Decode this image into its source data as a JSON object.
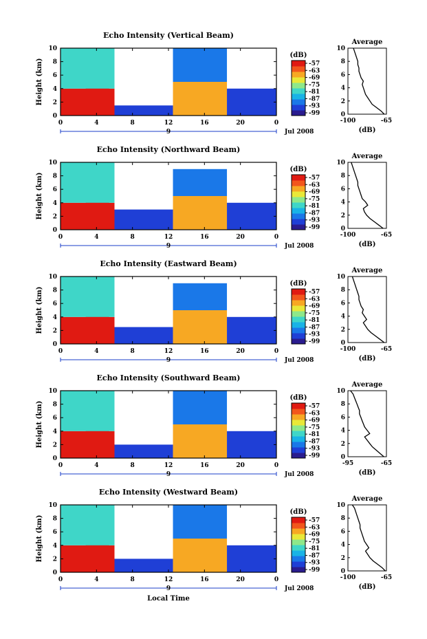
{
  "chart_data": [
    {
      "type": "heatmap",
      "title": "Echo Intensity (Vertical Beam)",
      "ylabel": "Height (km)",
      "x_ticks": [
        "0",
        "4",
        "8",
        "12",
        "16",
        "20",
        "0"
      ],
      "y_ticks": [
        "0",
        "2",
        "4",
        "6",
        "8",
        "10"
      ],
      "xlim": [
        0,
        24
      ],
      "ylim": [
        0,
        10
      ],
      "date_marker": "9",
      "date_label": "Jul 2008",
      "colorbar": {
        "unit": "(dB)",
        "labels": [
          "-57",
          "-63",
          "-69",
          "-75",
          "-81",
          "-87",
          "-93",
          "-99"
        ]
      },
      "average_profile": {
        "title": "Average",
        "xlabel": "(dB)",
        "x_ticks": [
          "-100",
          "-65"
        ],
        "xlim": [
          -100,
          -65
        ],
        "y_ticks": [
          "0",
          "2",
          "4",
          "6",
          "8",
          "10"
        ],
        "ylim": [
          0,
          10
        ],
        "x": [
          -67,
          -70,
          -74,
          -78,
          -80,
          -82,
          -84,
          -85,
          -86,
          -87,
          -86,
          -88,
          -89,
          -90,
          -90,
          -91,
          -91,
          -92,
          -93,
          -94,
          -95
        ],
        "y": [
          0,
          0.5,
          1,
          1.5,
          2,
          2.5,
          3,
          3.5,
          4,
          4.5,
          5,
          5.5,
          6,
          6.5,
          7,
          7.5,
          8,
          8.5,
          9,
          9.5,
          10
        ]
      },
      "cells": [
        {
          "x0": 0,
          "x1": 6,
          "y0": 0,
          "y1": 4,
          "value": -57
        },
        {
          "x0": 2.8,
          "x1": 5.4,
          "y0": 0,
          "y1": 4.6,
          "value": -57
        },
        {
          "x0": 0,
          "x1": 6,
          "y0": 4,
          "y1": 10,
          "value": -81
        },
        {
          "x0": 6,
          "x1": 12.5,
          "y0": 0,
          "y1": 1.5,
          "value": -93
        },
        {
          "x0": 12.5,
          "x1": 18.5,
          "y0": 0,
          "y1": 5,
          "value": -69
        },
        {
          "x0": 12.5,
          "x1": 18.5,
          "y0": 5,
          "y1": 10,
          "value": -87
        },
        {
          "x0": 18.5,
          "x1": 24,
          "y0": 0,
          "y1": 4,
          "value": -93
        }
      ]
    },
    {
      "type": "heatmap",
      "title": "Echo Intensity (Northward Beam)",
      "ylabel": "Height (km)",
      "x_ticks": [
        "0",
        "4",
        "8",
        "12",
        "16",
        "20",
        "0"
      ],
      "y_ticks": [
        "0",
        "2",
        "4",
        "6",
        "8",
        "10"
      ],
      "xlim": [
        0,
        24
      ],
      "ylim": [
        0,
        10
      ],
      "date_marker": "9",
      "date_label": "Jul 2008",
      "colorbar": {
        "unit": "(dB)",
        "labels": [
          "-57",
          "-63",
          "-69",
          "-75",
          "-81",
          "-87",
          "-93",
          "-99"
        ]
      },
      "average_profile": {
        "title": "Average",
        "xlabel": "(dB)",
        "x_ticks": [
          "-100",
          "-65"
        ],
        "xlim": [
          -100,
          -65
        ],
        "y_ticks": [
          "0",
          "2",
          "4",
          "6",
          "8",
          "10"
        ],
        "ylim": [
          0,
          10
        ],
        "x": [
          -68,
          -72,
          -76,
          -80,
          -83,
          -85,
          -86,
          -82,
          -84,
          -87,
          -88,
          -89,
          -90,
          -91,
          -91,
          -92,
          -93,
          -94,
          -95,
          -96,
          -97
        ],
        "y": [
          0,
          0.5,
          1,
          1.5,
          2,
          2.5,
          3,
          3.5,
          4,
          4.5,
          5,
          5.5,
          6,
          6.5,
          7,
          7.5,
          8,
          8.5,
          9,
          9.5,
          10
        ]
      },
      "cells": [
        {
          "x0": 0,
          "x1": 6,
          "y0": 0,
          "y1": 4,
          "value": -57
        },
        {
          "x0": 2.8,
          "x1": 5.4,
          "y0": 0,
          "y1": 4.6,
          "value": -57
        },
        {
          "x0": 0,
          "x1": 6,
          "y0": 4,
          "y1": 10,
          "value": -81
        },
        {
          "x0": 6,
          "x1": 12.5,
          "y0": 0,
          "y1": 3,
          "value": -93
        },
        {
          "x0": 12.5,
          "x1": 18.5,
          "y0": 0,
          "y1": 5,
          "value": -69
        },
        {
          "x0": 12.5,
          "x1": 18.5,
          "y0": 5,
          "y1": 9,
          "value": -87
        },
        {
          "x0": 18.5,
          "x1": 24,
          "y0": 0,
          "y1": 4,
          "value": -93
        }
      ]
    },
    {
      "type": "heatmap",
      "title": "Echo Intensity (Eastward Beam)",
      "ylabel": "Height (km)",
      "x_ticks": [
        "0",
        "4",
        "8",
        "12",
        "16",
        "20",
        "0"
      ],
      "y_ticks": [
        "0",
        "2",
        "4",
        "6",
        "8",
        "10"
      ],
      "xlim": [
        0,
        24
      ],
      "ylim": [
        0,
        10
      ],
      "date_marker": "9",
      "date_label": "Jul 2008",
      "colorbar": {
        "unit": "(dB)",
        "labels": [
          "-57",
          "-63",
          "-69",
          "-75",
          "-81",
          "-87",
          "-93",
          "-99"
        ]
      },
      "average_profile": {
        "title": "Average",
        "xlabel": "(dB)",
        "x_ticks": [
          "-100",
          "-65"
        ],
        "xlim": [
          -100,
          -65
        ],
        "y_ticks": [
          "0",
          "2",
          "4",
          "6",
          "8",
          "10"
        ],
        "ylim": [
          0,
          10
        ],
        "x": [
          -67,
          -71,
          -75,
          -79,
          -82,
          -84,
          -86,
          -83,
          -85,
          -87,
          -86,
          -88,
          -89,
          -90,
          -90,
          -91,
          -92,
          -93,
          -94,
          -95,
          -96
        ],
        "y": [
          0,
          0.5,
          1,
          1.5,
          2,
          2.5,
          3,
          3.5,
          4,
          4.5,
          5,
          5.5,
          6,
          6.5,
          7,
          7.5,
          8,
          8.5,
          9,
          9.5,
          10
        ]
      },
      "cells": [
        {
          "x0": 0,
          "x1": 6,
          "y0": 0,
          "y1": 4,
          "value": -57
        },
        {
          "x0": 2.8,
          "x1": 5.4,
          "y0": 0,
          "y1": 4.6,
          "value": -57
        },
        {
          "x0": 0,
          "x1": 6,
          "y0": 4,
          "y1": 10,
          "value": -81
        },
        {
          "x0": 6,
          "x1": 12.5,
          "y0": 0,
          "y1": 2.5,
          "value": -93
        },
        {
          "x0": 12.5,
          "x1": 18.5,
          "y0": 0,
          "y1": 5,
          "value": -69
        },
        {
          "x0": 12.5,
          "x1": 18.5,
          "y0": 5,
          "y1": 9,
          "value": -87
        },
        {
          "x0": 18.5,
          "x1": 24,
          "y0": 0,
          "y1": 4,
          "value": -93
        }
      ]
    },
    {
      "type": "heatmap",
      "title": "Echo Intensity (Southward Beam)",
      "ylabel": "Height (km)",
      "x_ticks": [
        "0",
        "4",
        "8",
        "12",
        "16",
        "20",
        "0"
      ],
      "y_ticks": [
        "0",
        "2",
        "4",
        "6",
        "8",
        "10"
      ],
      "xlim": [
        0,
        24
      ],
      "ylim": [
        0,
        10
      ],
      "date_marker": "9",
      "date_label": "Jul 2008",
      "colorbar": {
        "unit": "(dB)",
        "labels": [
          "-57",
          "-63",
          "-69",
          "-75",
          "-81",
          "-87",
          "-93",
          "-99"
        ]
      },
      "average_profile": {
        "title": "Average",
        "xlabel": "(dB)",
        "x_ticks": [
          "-95",
          "-65"
        ],
        "xlim": [
          -95,
          -65
        ],
        "y_ticks": [
          "0",
          "2",
          "4",
          "6",
          "8",
          "10"
        ],
        "ylim": [
          0,
          10
        ],
        "x": [
          -67,
          -70,
          -73,
          -76,
          -78,
          -80,
          -82,
          -78,
          -80,
          -82,
          -83,
          -84,
          -85,
          -86,
          -86,
          -87,
          -88,
          -89,
          -90,
          -91,
          -93
        ],
        "y": [
          0,
          0.5,
          1,
          1.5,
          2,
          2.5,
          3,
          3.5,
          4,
          4.5,
          5,
          5.5,
          6,
          6.5,
          7,
          7.5,
          8,
          8.5,
          9,
          9.5,
          10
        ]
      },
      "cells": [
        {
          "x0": 0,
          "x1": 6,
          "y0": 0,
          "y1": 4,
          "value": -57
        },
        {
          "x0": 2.8,
          "x1": 5.4,
          "y0": 0,
          "y1": 4.6,
          "value": -57
        },
        {
          "x0": 0,
          "x1": 6,
          "y0": 4,
          "y1": 10,
          "value": -81
        },
        {
          "x0": 6,
          "x1": 12.5,
          "y0": 0,
          "y1": 2,
          "value": -93
        },
        {
          "x0": 12.5,
          "x1": 18.5,
          "y0": 0,
          "y1": 5,
          "value": -69
        },
        {
          "x0": 12.5,
          "x1": 18.5,
          "y0": 5,
          "y1": 10,
          "value": -87
        },
        {
          "x0": 18.5,
          "x1": 24,
          "y0": 0,
          "y1": 4,
          "value": -93
        }
      ]
    },
    {
      "type": "heatmap",
      "title": "Echo Intensity (Westward Beam)",
      "ylabel": "Height (km)",
      "xlabel": "Local Time",
      "x_ticks": [
        "0",
        "4",
        "8",
        "12",
        "16",
        "20",
        "0"
      ],
      "y_ticks": [
        "0",
        "2",
        "4",
        "6",
        "8",
        "10"
      ],
      "xlim": [
        0,
        24
      ],
      "ylim": [
        0,
        10
      ],
      "date_marker": "9",
      "date_label": "Jul 2008",
      "colorbar": {
        "unit": "(dB)",
        "labels": [
          "-57",
          "-63",
          "-69",
          "-75",
          "-81",
          "-87",
          "-93",
          "-99"
        ]
      },
      "average_profile": {
        "title": "Average",
        "xlabel": "(dB)",
        "x_ticks": [
          "-100",
          "-65"
        ],
        "xlim": [
          -100,
          -65
        ],
        "y_ticks": [
          "0",
          "2",
          "4",
          "6",
          "8",
          "10"
        ],
        "ylim": [
          0,
          10
        ],
        "x": [
          -66,
          -69,
          -73,
          -77,
          -80,
          -82,
          -84,
          -81,
          -83,
          -85,
          -86,
          -87,
          -88,
          -89,
          -89,
          -90,
          -91,
          -92,
          -93,
          -94,
          -96
        ],
        "y": [
          0,
          0.5,
          1,
          1.5,
          2,
          2.5,
          3,
          3.5,
          4,
          4.5,
          5,
          5.5,
          6,
          6.5,
          7,
          7.5,
          8,
          8.5,
          9,
          9.5,
          10
        ]
      },
      "cells": [
        {
          "x0": 0,
          "x1": 6,
          "y0": 0,
          "y1": 4,
          "value": -57
        },
        {
          "x0": 2.8,
          "x1": 5.4,
          "y0": 0,
          "y1": 4.6,
          "value": -57
        },
        {
          "x0": 0,
          "x1": 6,
          "y0": 4,
          "y1": 10,
          "value": -81
        },
        {
          "x0": 6,
          "x1": 12.5,
          "y0": 0,
          "y1": 2,
          "value": -93
        },
        {
          "x0": 12.5,
          "x1": 18.5,
          "y0": 0,
          "y1": 5,
          "value": -69
        },
        {
          "x0": 12.5,
          "x1": 18.5,
          "y0": 5,
          "y1": 10,
          "value": -87
        },
        {
          "x0": 18.5,
          "x1": 24,
          "y0": 0,
          "y1": 4,
          "value": -93
        }
      ]
    }
  ],
  "colormap": [
    "#2a1c8f",
    "#1f3fd6",
    "#1a78e8",
    "#19b3e6",
    "#3fd6c8",
    "#8ee88a",
    "#e9e838",
    "#f7a823",
    "#f2561c",
    "#e01a12"
  ]
}
